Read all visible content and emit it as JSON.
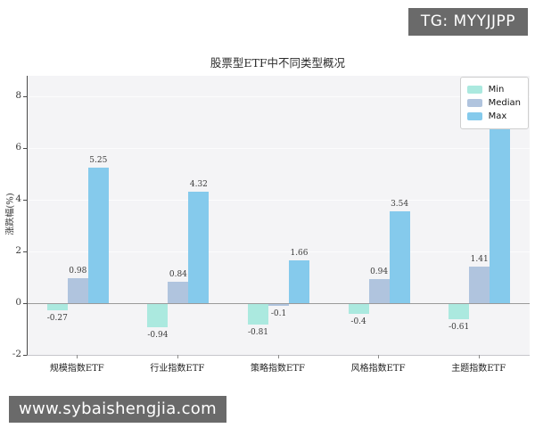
{
  "overlays": {
    "badge_text": "TG: MYYJJPP",
    "watermark_text": "www.sybaishengjia.com",
    "overlay_bg": "#6a6a6a"
  },
  "chart_data": {
    "type": "bar",
    "title": "股票型ETF中不同类型概况",
    "xlabel": "",
    "ylabel": "涨跌幅(%)",
    "categories": [
      "规模指数ETF",
      "行业指数ETF",
      "策略指数ETF",
      "风格指数ETF",
      "主题指数ETF"
    ],
    "series": [
      {
        "name": "Min",
        "color": "#abe9df",
        "values": [
          -0.27,
          -0.94,
          -0.81,
          -0.4,
          -0.61
        ]
      },
      {
        "name": "Median",
        "color": "#b0c4de",
        "values": [
          0.98,
          0.84,
          -0.1,
          0.94,
          1.41
        ]
      },
      {
        "name": "Max",
        "color": "#85caec",
        "values": [
          5.25,
          4.32,
          1.66,
          3.54,
          7.08
        ]
      }
    ],
    "yticks": [
      -2,
      0,
      2,
      4,
      6,
      8
    ],
    "ylim": [
      -2,
      8.8
    ],
    "grid": "horizontal",
    "legend_position": "top-right",
    "plot_bg": "#f4f4f6",
    "zero_line_color": "#9a9a9a"
  }
}
